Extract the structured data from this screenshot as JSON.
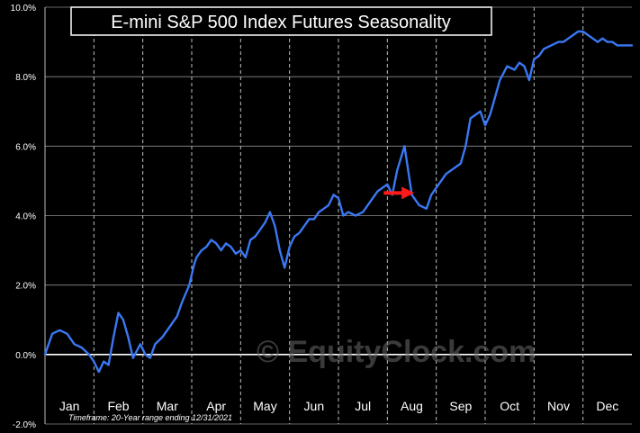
{
  "chart_data": {
    "type": "line",
    "title": "E-mini S&P 500 Index Futures Seasonality",
    "xlabel": "",
    "ylabel": "",
    "ylim": [
      -2.0,
      10.0
    ],
    "yticks": [
      "10.0%",
      "8.0%",
      "6.0%",
      "4.0%",
      "2.0%",
      "0.0%",
      "-2.0%"
    ],
    "ytick_values": [
      10,
      8,
      6,
      4,
      2,
      0,
      -2
    ],
    "months": [
      "Jan",
      "Feb",
      "Mar",
      "Apr",
      "May",
      "Jun",
      "Jul",
      "Aug",
      "Sep",
      "Oct",
      "Nov",
      "Dec"
    ],
    "grid": true,
    "timeframe_note": "Timeframe:  20-Year range ending 12/31/2021",
    "watermark": "© EquityClock.com",
    "series": [
      {
        "color": "#3a78f2",
        "x": [
          0.0,
          0.15,
          0.3,
          0.45,
          0.6,
          0.75,
          0.9,
          1.0,
          1.1,
          1.2,
          1.3,
          1.4,
          1.5,
          1.6,
          1.7,
          1.8,
          1.95,
          2.05,
          2.15,
          2.25,
          2.4,
          2.55,
          2.7,
          2.8,
          2.95,
          3.05,
          3.1,
          3.2,
          3.3,
          3.4,
          3.5,
          3.6,
          3.7,
          3.8,
          3.9,
          4.0,
          4.1,
          4.2,
          4.3,
          4.4,
          4.5,
          4.6,
          4.7,
          4.8,
          4.9,
          5.0,
          5.1,
          5.2,
          5.3,
          5.4,
          5.5,
          5.6,
          5.7,
          5.8,
          5.9,
          6.0,
          6.1,
          6.2,
          6.35,
          6.5,
          6.65,
          6.8,
          6.9,
          7.0,
          7.1,
          7.2,
          7.35,
          7.5,
          7.65,
          7.8,
          7.9,
          8.0,
          8.1,
          8.2,
          8.3,
          8.4,
          8.5,
          8.6,
          8.7,
          8.8,
          8.9,
          9.0,
          9.1,
          9.2,
          9.3,
          9.45,
          9.6,
          9.7,
          9.8,
          9.9,
          10.0,
          10.1,
          10.2,
          10.35,
          10.5,
          10.6,
          10.7,
          10.8,
          10.9,
          11.0,
          11.1,
          11.2,
          11.3,
          11.4,
          11.5,
          11.6,
          11.7,
          11.8,
          11.9,
          12.0
        ],
        "y": [
          0.0,
          0.6,
          0.7,
          0.6,
          0.3,
          0.2,
          0.0,
          -0.2,
          -0.5,
          -0.2,
          -0.3,
          0.5,
          1.2,
          1.0,
          0.5,
          -0.1,
          0.3,
          0.0,
          -0.1,
          0.3,
          0.5,
          0.8,
          1.1,
          1.5,
          2.0,
          2.6,
          2.8,
          3.0,
          3.1,
          3.3,
          3.2,
          3.0,
          3.2,
          3.1,
          2.9,
          3.0,
          2.8,
          3.3,
          3.4,
          3.6,
          3.8,
          4.1,
          3.7,
          3.0,
          2.5,
          3.1,
          3.4,
          3.5,
          3.7,
          3.9,
          3.9,
          4.1,
          4.2,
          4.3,
          4.6,
          4.5,
          4.0,
          4.1,
          4.0,
          4.1,
          4.4,
          4.7,
          4.8,
          4.9,
          4.6,
          5.3,
          6.0,
          4.6,
          4.3,
          4.2,
          4.6,
          4.8,
          5.0,
          5.2,
          5.3,
          5.4,
          5.5,
          6.0,
          6.8,
          6.9,
          7.0,
          6.6,
          6.9,
          7.4,
          7.9,
          8.3,
          8.2,
          8.4,
          8.3,
          7.9,
          8.5,
          8.6,
          8.8,
          8.9,
          9.0,
          9.0,
          9.1,
          9.2,
          9.3,
          9.3,
          9.2,
          9.1,
          9.0,
          9.1,
          9.0,
          9.0,
          8.9,
          8.9,
          8.9,
          8.9
        ]
      }
    ],
    "annotation": {
      "type": "arrow",
      "color": "#ff1a1a",
      "x_month": 7.55,
      "y_value": 4.65
    }
  }
}
